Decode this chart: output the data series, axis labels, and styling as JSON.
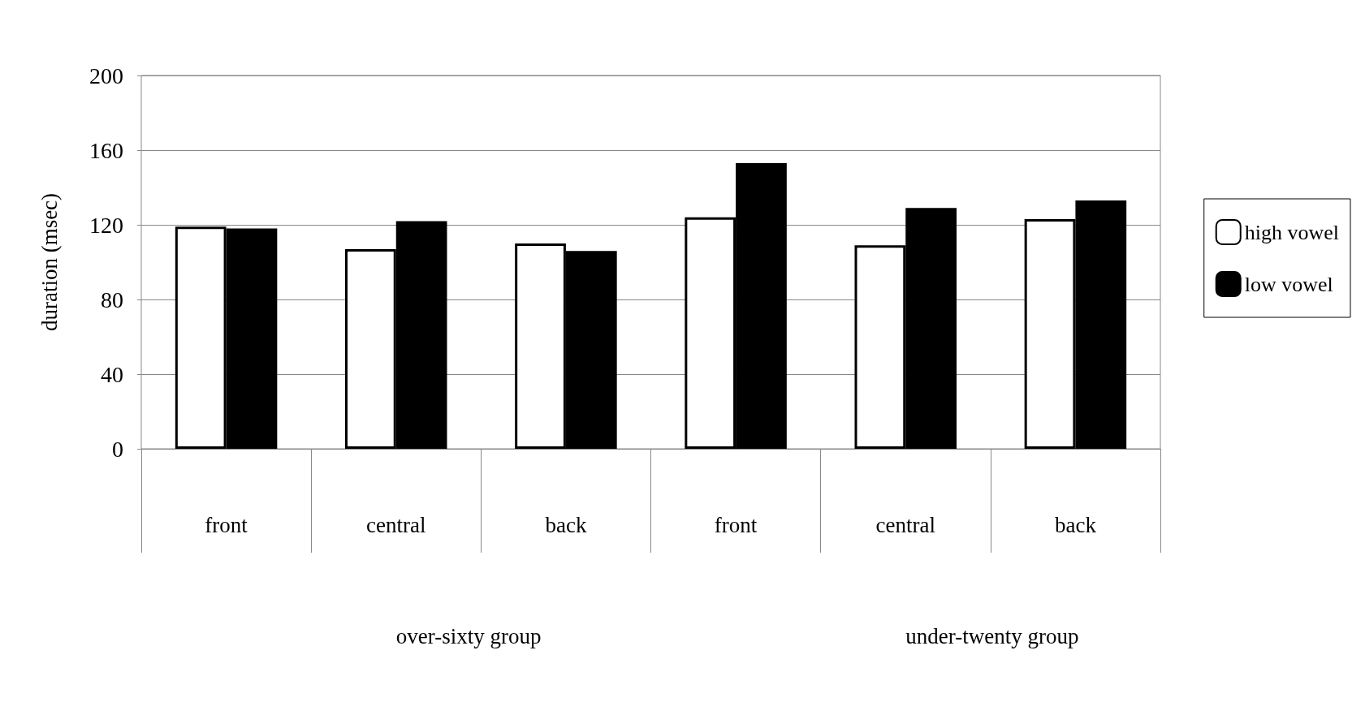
{
  "chart_data": {
    "type": "bar",
    "ylabel": "duration (msec)",
    "categories": [
      "front",
      "central",
      "back",
      "front",
      "central",
      "back"
    ],
    "series": [
      {
        "name": "high vowel",
        "color": "#ffffff",
        "values": [
          119,
          107,
          110,
          124,
          109,
          123
        ]
      },
      {
        "name": "low vowel",
        "color": "#000000",
        "values": [
          118,
          122,
          106,
          153,
          129,
          133
        ]
      }
    ],
    "ylim": [
      0,
      200
    ],
    "yticks": [
      0,
      40,
      80,
      120,
      160,
      200
    ],
    "grid": "y",
    "legend": "right",
    "annotations": [
      "over-sixty group",
      "under-twenty group"
    ]
  }
}
